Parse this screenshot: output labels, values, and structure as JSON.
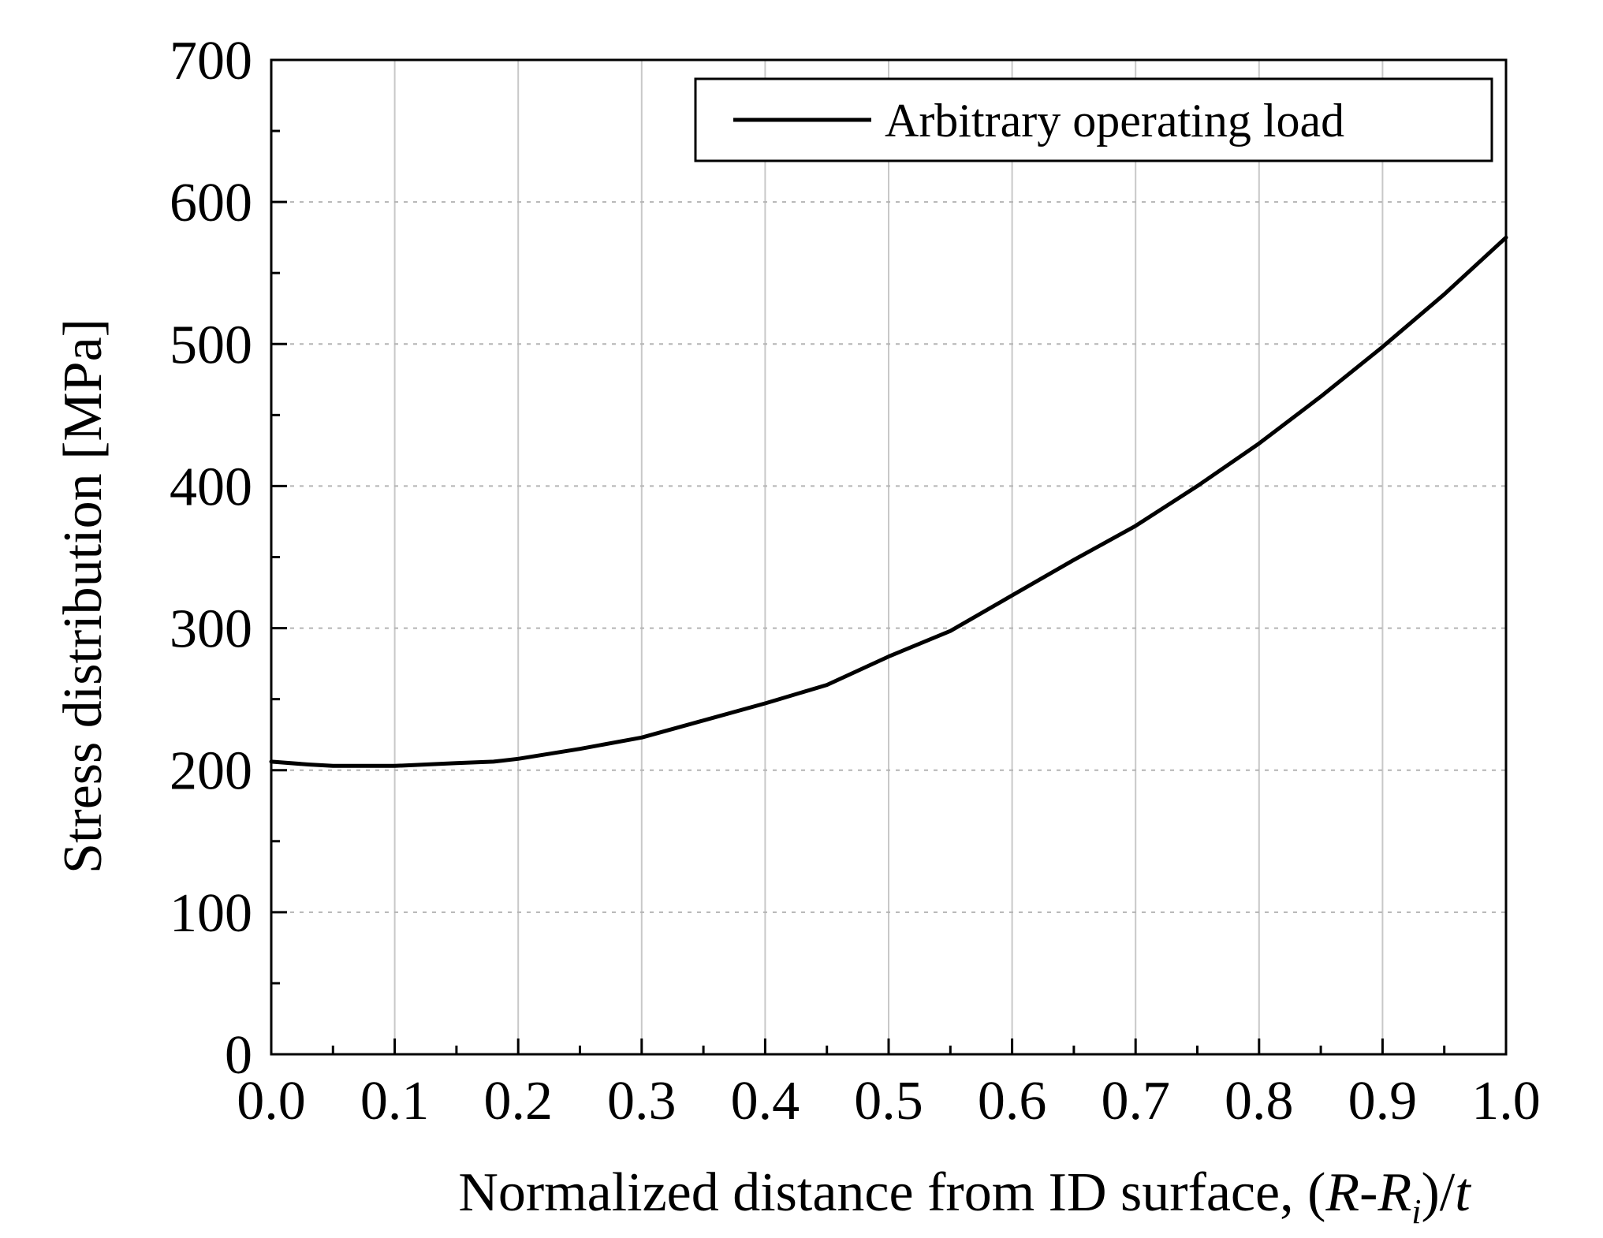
{
  "chart_data": {
    "type": "line",
    "xlabel": {
      "main": "Normalized distance from ID surface, ",
      "open": "(",
      "r": "R",
      "dash": "-",
      "r2": "R",
      "sub": "i",
      "close": ")/",
      "t": "t"
    },
    "ylabel": "Stress distribution [MPa]",
    "xlim": [
      0.0,
      1.0
    ],
    "ylim": [
      0,
      700
    ],
    "x_ticks": [
      "0.0",
      "0.1",
      "0.2",
      "0.3",
      "0.4",
      "0.5",
      "0.6",
      "0.7",
      "0.8",
      "0.9",
      "1.0"
    ],
    "y_ticks": [
      "0",
      "100",
      "200",
      "300",
      "400",
      "500",
      "600",
      "700"
    ],
    "x_tick_values": [
      0.0,
      0.1,
      0.2,
      0.3,
      0.4,
      0.5,
      0.6,
      0.7,
      0.8,
      0.9,
      1.0
    ],
    "y_tick_values": [
      0,
      100,
      200,
      300,
      400,
      500,
      600,
      700
    ],
    "grid": {
      "vertical": true,
      "horizontal": true,
      "horizontal_style": "dotted"
    },
    "legend_placement": "top-right",
    "series": [
      {
        "name": "Arbitrary operating load",
        "color": "#000000",
        "x": [
          0.0,
          0.03,
          0.05,
          0.1,
          0.15,
          0.18,
          0.2,
          0.25,
          0.3,
          0.35,
          0.4,
          0.45,
          0.5,
          0.55,
          0.6,
          0.65,
          0.7,
          0.75,
          0.8,
          0.85,
          0.9,
          0.95,
          1.0
        ],
        "y": [
          206,
          204,
          203,
          203,
          205,
          206,
          208,
          215,
          223,
          235,
          247,
          260,
          280,
          298,
          323,
          348,
          372,
          400,
          430,
          463,
          498,
          535,
          575
        ]
      }
    ]
  }
}
